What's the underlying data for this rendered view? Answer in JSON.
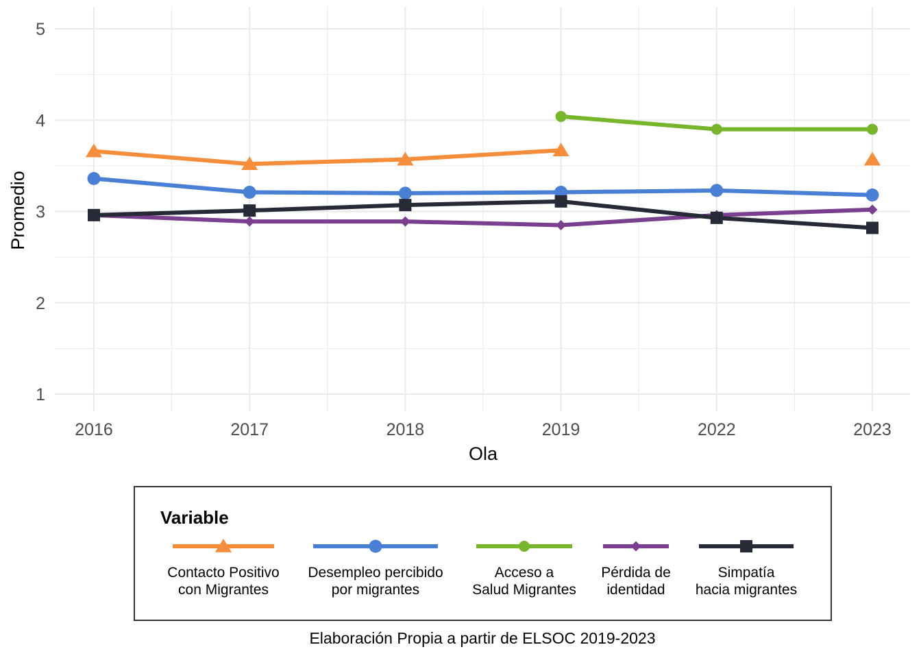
{
  "chart_data": {
    "type": "line",
    "categories": [
      "2016",
      "2017",
      "2018",
      "2019",
      "2022",
      "2023"
    ],
    "xlabel": "Ola",
    "ylabel": "Promedio",
    "ylim": [
      1,
      5
    ],
    "yticks": [
      "1",
      "2",
      "3",
      "4",
      "5"
    ],
    "grid": true,
    "legend": {
      "title": "Variable",
      "position": "bottom"
    },
    "caption": "Elaboración Propia a partir de ELSOC 2019-2023",
    "series": [
      {
        "name": "Contacto Positivo con Migrantes",
        "label_lines": [
          "Contacto Positivo",
          "con Migrantes"
        ],
        "color": "#F68D3B",
        "marker": "triangle",
        "values": [
          3.66,
          3.52,
          3.57,
          3.67,
          null,
          3.57
        ]
      },
      {
        "name": "Desempleo percibido por migrantes",
        "label_lines": [
          "Desempleo percibido",
          "por migrantes"
        ],
        "color": "#4A7FD6",
        "marker": "circle",
        "values": [
          3.36,
          3.21,
          3.2,
          3.21,
          3.23,
          3.18
        ]
      },
      {
        "name": "Acceso a Salud Migrantes",
        "label_lines": [
          "Acceso a",
          "Salud Migrantes"
        ],
        "color": "#77B52A",
        "marker": "circle-small",
        "values": [
          null,
          null,
          null,
          4.04,
          3.9,
          3.9
        ]
      },
      {
        "name": "Pérdida de identidad",
        "label_lines": [
          "Pérdida de",
          "identidad"
        ],
        "color": "#7A3F8E",
        "marker": "diamond",
        "values": [
          2.96,
          2.89,
          2.89,
          2.85,
          2.96,
          3.02
        ]
      },
      {
        "name": "Simpatía hacia migrantes",
        "label_lines": [
          "Simpatía",
          "hacia migrantes"
        ],
        "color": "#262A36",
        "marker": "square",
        "values": [
          2.96,
          3.01,
          3.07,
          3.11,
          2.93,
          2.82
        ]
      }
    ]
  }
}
